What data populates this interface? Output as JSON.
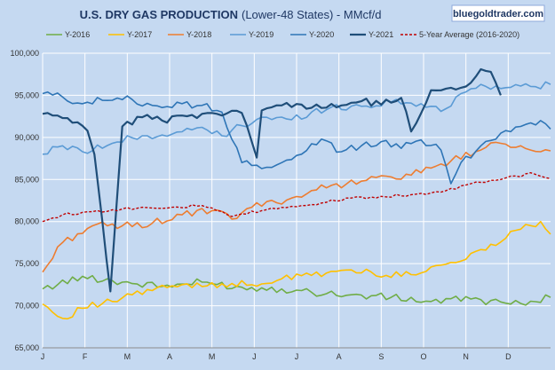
{
  "chart_data": {
    "type": "line",
    "title": "U.S. DRY GAS PRODUCTION",
    "subtitle": "(Lower-48 States) - MMcf/d",
    "watermark": "bluegoldtrader.com",
    "ylim": [
      65000,
      100000
    ],
    "y_ticks": [
      "65,000",
      "70,000",
      "75,000",
      "80,000",
      "85,000",
      "90,000",
      "95,000",
      "100,000"
    ],
    "x_ticks": [
      "J",
      "F",
      "M",
      "A",
      "M",
      "J",
      "J",
      "A",
      "S",
      "O",
      "N",
      "D"
    ],
    "grid": true,
    "legend_position": "top",
    "series": [
      {
        "name": "Y-2016",
        "color": "#70ad47",
        "dash": false,
        "width": 1.6,
        "weeks": [
          1,
          5,
          9,
          13,
          17,
          21,
          25,
          28,
          32,
          36,
          40,
          44,
          48,
          52
        ],
        "values": [
          72000,
          73500,
          72800,
          72300,
          72800,
          72200,
          72000,
          71600,
          71300,
          71000,
          70500,
          70800,
          70200,
          71000
        ]
      },
      {
        "name": "Y-2017",
        "color": "#ffc000",
        "dash": false,
        "width": 1.6,
        "weeks": [
          1,
          3,
          5,
          8,
          10,
          12,
          15,
          19,
          22,
          25,
          28,
          31,
          34,
          37,
          40,
          43,
          46,
          49,
          51,
          52
        ],
        "values": [
          70200,
          68500,
          69700,
          70500,
          71300,
          71800,
          72500,
          72600,
          72500,
          73200,
          73600,
          74200,
          74000,
          73500,
          74600,
          75300,
          77300,
          79100,
          80000,
          78500
        ]
      },
      {
        "name": "Y-2018",
        "color": "#ed7d31",
        "dash": false,
        "width": 1.6,
        "weeks": [
          1,
          3,
          6,
          9,
          12,
          15,
          18,
          20,
          22,
          26,
          30,
          33,
          36,
          39,
          42,
          45,
          47,
          49,
          50,
          51,
          52
        ],
        "values": [
          74000,
          77500,
          79500,
          79500,
          79800,
          80800,
          81300,
          80300,
          81700,
          82800,
          84300,
          84800,
          85300,
          85800,
          87200,
          88500,
          89300,
          89000,
          88500,
          88300,
          88400
        ]
      },
      {
        "name": "Y-2019",
        "color": "#5b9bd5",
        "dash": false,
        "width": 1.6,
        "weeks": [
          1,
          3,
          5,
          8,
          11,
          14,
          17,
          19,
          21,
          23,
          26,
          28,
          30,
          33,
          36,
          39,
          41,
          43,
          45,
          47,
          49,
          52
        ],
        "values": [
          88000,
          89000,
          88300,
          89300,
          90200,
          90400,
          91200,
          90200,
          91400,
          92400,
          92100,
          93000,
          93600,
          93700,
          94200,
          94000,
          93100,
          95200,
          96300,
          95800,
          96100,
          96300
        ]
      },
      {
        "name": "Y-2020",
        "color": "#2e75b6",
        "dash": false,
        "width": 1.6,
        "weeks": [
          1,
          3,
          5,
          7,
          10,
          12,
          15,
          17,
          19,
          21,
          23,
          25,
          27,
          29,
          31,
          33,
          35,
          37,
          39,
          41,
          42,
          43,
          45,
          47,
          49,
          51,
          52
        ],
        "values": [
          95200,
          94800,
          94000,
          94400,
          94500,
          93800,
          94000,
          93800,
          93000,
          87000,
          86300,
          87000,
          88000,
          89800,
          88300,
          89000,
          89500,
          88700,
          89700,
          88500,
          84500,
          87000,
          89000,
          90500,
          91300,
          92000,
          91000
        ]
      },
      {
        "name": "Y-2021",
        "color": "#1f4e79",
        "dash": false,
        "width": 2.2,
        "weeks": [
          1,
          3,
          4.5,
          5.5,
          6.2,
          7,
          7.8,
          9,
          11,
          13,
          15,
          17,
          19,
          21,
          22,
          22.5,
          23,
          25,
          27,
          29,
          31,
          33,
          35,
          37,
          38,
          40,
          42,
          44,
          45,
          46,
          46.5,
          47
        ],
        "values": [
          92800,
          92300,
          91800,
          90800,
          88000,
          80000,
          71700,
          91300,
          92400,
          92000,
          92600,
          92800,
          92600,
          92900,
          89500,
          87600,
          93200,
          93800,
          93900,
          93500,
          93800,
          94300,
          93900,
          94700,
          90700,
          95600,
          95900,
          96500,
          98100,
          97800,
          96500,
          95000
        ]
      },
      {
        "name": "5-Year Average (2016-2020)",
        "color": "#c00000",
        "dash": true,
        "width": 1.4,
        "weeks": [
          1,
          3,
          5,
          8,
          11,
          14,
          17,
          20,
          23,
          26,
          29,
          32,
          35,
          38,
          41,
          44,
          46,
          47,
          48,
          49,
          50,
          52
        ],
        "values": [
          80000,
          80800,
          81100,
          81400,
          81700,
          81700,
          81900,
          80600,
          81300,
          81800,
          82200,
          82800,
          83000,
          83200,
          83500,
          84500,
          84900,
          85000,
          85400,
          85300,
          85800,
          85100
        ]
      }
    ]
  }
}
